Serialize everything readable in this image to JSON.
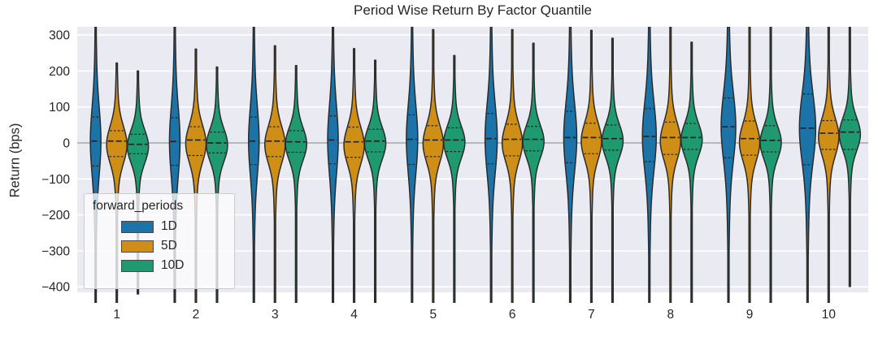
{
  "chart_data": {
    "type": "violin",
    "title": "Period Wise Return By Factor Quantile",
    "xlabel": "",
    "ylabel": "Return (bps)",
    "categories": [
      "1",
      "2",
      "3",
      "4",
      "5",
      "6",
      "7",
      "8",
      "9",
      "10"
    ],
    "y_ticks": [
      300,
      200,
      100,
      0,
      -100,
      -200,
      -300,
      -400
    ],
    "y_tick_labels": [
      "300",
      "200",
      "100",
      "0",
      "−100",
      "−200",
      "−300",
      "−400"
    ],
    "ylim": [
      -420,
      323
    ],
    "zero_line": 0,
    "grid": "horizontal-white-on-gray",
    "background_color": "#eaeaf2",
    "gridline_color": "#ffffff",
    "zero_line_color": "#7a7a7a",
    "edge_color": "#2b2b2b",
    "text_color": "#262626",
    "legend": {
      "title": "forward_periods",
      "position": "lower-left",
      "entries": [
        {
          "label": "1D",
          "color": "#1c73a8"
        },
        {
          "label": "5D",
          "color": "#cf8f17"
        },
        {
          "label": "10D",
          "color": "#1f9a70"
        }
      ]
    },
    "series": [
      {
        "name": "1D",
        "color": "#1c73a8",
        "offset": -26,
        "modeOffset": 0,
        "s1": 90,
        "s2": 230,
        "mix": 0.72,
        "hw": [
          6.5,
          6.5,
          6.5,
          6.5,
          7,
          7.5,
          8,
          8.5,
          9,
          10
        ],
        "stats": [
          {
            "min": -470,
            "max": 345,
            "q1": -64,
            "med": 5,
            "q3": 72
          },
          {
            "min": -470,
            "max": 345,
            "q1": -62,
            "med": 4,
            "q3": 70
          },
          {
            "min": -470,
            "max": 345,
            "q1": -60,
            "med": 5,
            "q3": 72
          },
          {
            "min": -470,
            "max": 345,
            "q1": -58,
            "med": 8,
            "q3": 75
          },
          {
            "min": -470,
            "max": 345,
            "q1": -60,
            "med": 10,
            "q3": 78
          },
          {
            "min": -470,
            "max": 345,
            "q1": -58,
            "med": 12,
            "q3": 82
          },
          {
            "min": -470,
            "max": 345,
            "q1": -55,
            "med": 15,
            "q3": 88
          },
          {
            "min": -470,
            "max": 345,
            "q1": -52,
            "med": 18,
            "q3": 95
          },
          {
            "min": -470,
            "max": 345,
            "q1": -41,
            "med": 45,
            "q3": 125
          },
          {
            "min": -470,
            "max": 345,
            "q1": -61,
            "med": 41,
            "q3": 136
          }
        ]
      },
      {
        "name": "5D",
        "color": "#cf8f17",
        "offset": 0,
        "modeOffset": -10,
        "s1": 50,
        "s2": 140,
        "mix": 0.8,
        "hw": [
          12.5,
          12.5,
          12.5,
          12.5,
          12.5,
          12.5,
          12.5,
          12.5,
          12.5,
          12.5
        ],
        "stats": [
          {
            "min": -470,
            "max": 222,
            "q1": -38,
            "med": 5,
            "q3": 34
          },
          {
            "min": -470,
            "max": 261,
            "q1": -35,
            "med": 8,
            "q3": 45
          },
          {
            "min": -470,
            "max": 270,
            "q1": -38,
            "med": 5,
            "q3": 45
          },
          {
            "min": -470,
            "max": 262,
            "q1": -40,
            "med": 3,
            "q3": 44
          },
          {
            "min": -470,
            "max": 315,
            "q1": -38,
            "med": 8,
            "q3": 48
          },
          {
            "min": -470,
            "max": 315,
            "q1": -36,
            "med": 10,
            "q3": 52
          },
          {
            "min": -470,
            "max": 313,
            "q1": -30,
            "med": 15,
            "q3": 55
          },
          {
            "min": -470,
            "max": 345,
            "q1": -32,
            "med": 15,
            "q3": 58
          },
          {
            "min": -470,
            "max": 345,
            "q1": -34,
            "med": 12,
            "q3": 61
          },
          {
            "min": -470,
            "max": 345,
            "q1": -18,
            "med": 27,
            "q3": 62
          }
        ]
      },
      {
        "name": "10D",
        "color": "#1f9a70",
        "offset": 26,
        "modeOffset": -6,
        "s1": 44,
        "s2": 120,
        "mix": 0.8,
        "hw": [
          13,
          13,
          13,
          13,
          13,
          13,
          13,
          13,
          13,
          13
        ],
        "stats": [
          {
            "min": -420,
            "max": 200,
            "q1": -30,
            "med": -4,
            "q3": 24
          },
          {
            "min": -470,
            "max": 211,
            "q1": -28,
            "med": 0,
            "q3": 30
          },
          {
            "min": -470,
            "max": 215,
            "q1": -26,
            "med": 3,
            "q3": 34
          },
          {
            "min": -470,
            "max": 230,
            "q1": -25,
            "med": 5,
            "q3": 38
          },
          {
            "min": -470,
            "max": 243,
            "q1": -24,
            "med": 8,
            "q3": 42
          },
          {
            "min": -470,
            "max": 277,
            "q1": -22,
            "med": 10,
            "q3": 46
          },
          {
            "min": -470,
            "max": 291,
            "q1": -20,
            "med": 12,
            "q3": 50
          },
          {
            "min": -470,
            "max": 280,
            "q1": -18,
            "med": 15,
            "q3": 54
          },
          {
            "min": -470,
            "max": 345,
            "q1": -25,
            "med": 7,
            "q3": 48
          },
          {
            "min": -400,
            "max": 345,
            "q1": -18,
            "med": 30,
            "q3": 64
          }
        ]
      }
    ]
  }
}
